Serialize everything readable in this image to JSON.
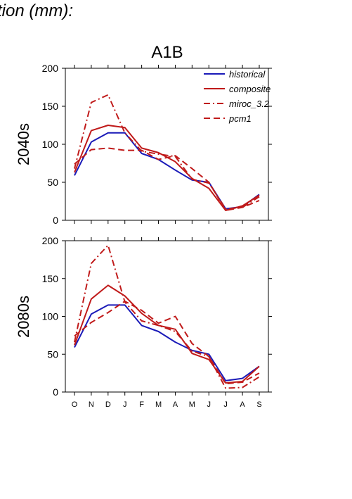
{
  "figure": {
    "heading": "tion (mm):",
    "scenario_title": "A1B"
  },
  "chart_data": [
    {
      "type": "line",
      "title": "A1B",
      "ylabel": "2040s",
      "xlabel": "",
      "categories": [
        "O",
        "N",
        "D",
        "J",
        "F",
        "M",
        "A",
        "M",
        "J",
        "J",
        "A",
        "S"
      ],
      "ylim": [
        0,
        200
      ],
      "yticks": [
        0,
        50,
        100,
        150,
        200
      ],
      "legend_position": "top-right",
      "grid": false,
      "series": [
        {
          "name": "historical",
          "color": "#1a1ab8",
          "dash": "solid",
          "values": [
            59,
            103,
            115,
            115,
            88,
            80,
            66,
            53,
            50,
            15,
            18,
            34
          ]
        },
        {
          "name": "composite",
          "color": "#c01a1a",
          "dash": "solid",
          "values": [
            63,
            118,
            125,
            122,
            95,
            89,
            77,
            55,
            42,
            13,
            19,
            33
          ]
        },
        {
          "name": "miroc_3.2",
          "color": "#c01a1a",
          "dash": "dashdot",
          "values": [
            68,
            155,
            165,
            115,
            91,
            87,
            84,
            54,
            49,
            15,
            17,
            31
          ]
        },
        {
          "name": "pcm1",
          "color": "#c01a1a",
          "dash": "dashed",
          "values": [
            74,
            93,
            95,
            92,
            92,
            80,
            85,
            68,
            50,
            13,
            17,
            26
          ]
        }
      ]
    },
    {
      "type": "line",
      "title": "",
      "ylabel": "2080s",
      "xlabel": "",
      "categories": [
        "O",
        "N",
        "D",
        "J",
        "F",
        "M",
        "A",
        "M",
        "J",
        "J",
        "A",
        "S"
      ],
      "ylim": [
        0,
        200
      ],
      "yticks": [
        0,
        50,
        100,
        150,
        200
      ],
      "legend_position": "none",
      "grid": false,
      "series": [
        {
          "name": "historical",
          "color": "#1a1ab8",
          "dash": "solid",
          "values": [
            59,
            103,
            115,
            115,
            88,
            80,
            66,
            55,
            50,
            15,
            18,
            34
          ]
        },
        {
          "name": "composite",
          "color": "#c01a1a",
          "dash": "solid",
          "values": [
            62,
            123,
            141,
            127,
            104,
            88,
            83,
            51,
            43,
            12,
            14,
            34
          ]
        },
        {
          "name": "miroc_3.2",
          "color": "#c01a1a",
          "dash": "dashdot",
          "values": [
            66,
            170,
            194,
            119,
            94,
            88,
            80,
            54,
            47,
            5,
            6,
            20
          ]
        },
        {
          "name": "pcm1",
          "color": "#c01a1a",
          "dash": "dashed",
          "values": [
            74,
            92,
            105,
            120,
            108,
            91,
            100,
            64,
            47,
            11,
            13,
            25
          ]
        }
      ]
    }
  ]
}
